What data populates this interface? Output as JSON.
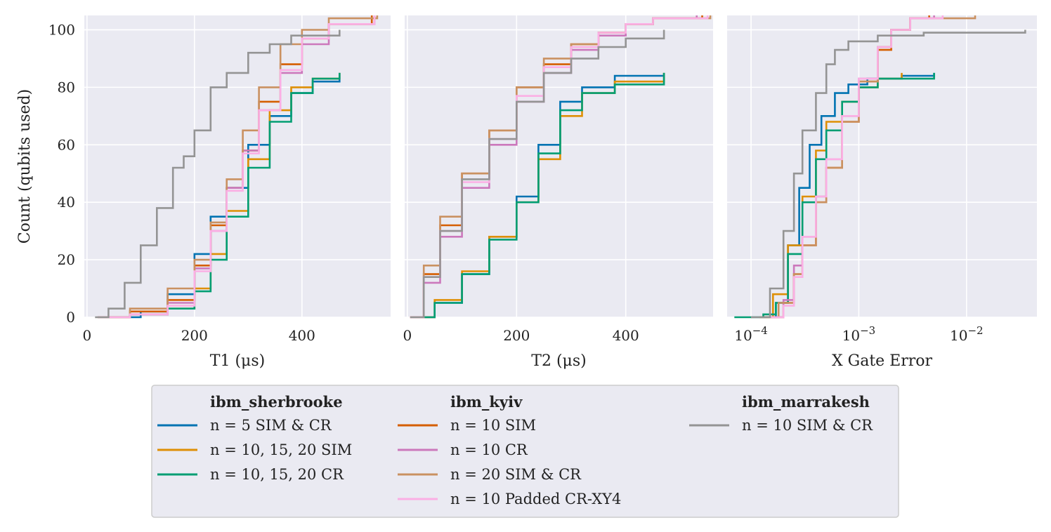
{
  "chart_data": [
    {
      "type": "line",
      "subtype": "step-ecdf",
      "xlabel": "T1 (μs)",
      "ylabel": "Count (qubits used)",
      "xlim": [
        -5,
        565
      ],
      "ylim": [
        0,
        105
      ],
      "xticks": [
        "0",
        "200",
        "400"
      ],
      "yticks": [
        "0",
        "20",
        "40",
        "60",
        "80",
        "100"
      ],
      "grid": true,
      "series": [
        {
          "name": "n = 5 SIM & CR",
          "group": "ibm_sherbrooke",
          "color": "#0173b2",
          "x": [
            25,
            100,
            150,
            200,
            230,
            260,
            300,
            340,
            380,
            420,
            470
          ],
          "y": [
            0,
            2,
            8,
            22,
            35,
            45,
            60,
            70,
            78,
            82,
            85
          ]
        },
        {
          "name": "n = 10, 15, 20 SIM",
          "group": "ibm_sherbrooke",
          "color": "#de8f05",
          "x": [
            20,
            80,
            150,
            200,
            230,
            260,
            300,
            340,
            380,
            420,
            470
          ],
          "y": [
            0,
            1,
            3,
            10,
            22,
            37,
            55,
            72,
            80,
            83,
            85
          ]
        },
        {
          "name": "n = 10, 15, 20 CR",
          "group": "ibm_sherbrooke",
          "color": "#029e73",
          "x": [
            20,
            80,
            150,
            200,
            230,
            260,
            300,
            340,
            380,
            420,
            470
          ],
          "y": [
            0,
            1,
            3,
            9,
            20,
            35,
            52,
            68,
            78,
            83,
            85
          ]
        },
        {
          "name": "n = 10 SIM",
          "group": "ibm_kyiv",
          "color": "#d55e00",
          "x": [
            20,
            80,
            150,
            200,
            230,
            260,
            290,
            320,
            360,
            400,
            450,
            530
          ],
          "y": [
            0,
            2,
            6,
            18,
            32,
            45,
            58,
            75,
            88,
            97,
            102,
            105
          ]
        },
        {
          "name": "n = 10 CR",
          "group": "ibm_kyiv",
          "color": "#cc78bc",
          "x": [
            20,
            80,
            150,
            200,
            230,
            260,
            290,
            320,
            360,
            400,
            450,
            535
          ],
          "y": [
            0,
            1,
            5,
            17,
            30,
            45,
            58,
            72,
            85,
            95,
            102,
            105
          ]
        },
        {
          "name": "n = 20 SIM & CR",
          "group": "ibm_kyiv",
          "color": "#ca9161",
          "x": [
            20,
            80,
            150,
            200,
            230,
            260,
            290,
            320,
            360,
            400,
            450,
            540
          ],
          "y": [
            0,
            3,
            10,
            20,
            33,
            48,
            65,
            80,
            95,
            100,
            104,
            105
          ]
        },
        {
          "name": "n = 10 Padded CR-XY4",
          "group": "ibm_kyiv",
          "color": "#fbafe4",
          "x": [
            20,
            80,
            150,
            200,
            230,
            260,
            290,
            320,
            360,
            400,
            450,
            535
          ],
          "y": [
            0,
            1,
            4,
            16,
            30,
            44,
            57,
            72,
            86,
            97,
            102,
            105
          ]
        },
        {
          "name": "n = 10 SIM & CR",
          "group": "ibm_marrakesh",
          "color": "#949494",
          "x": [
            15,
            40,
            70,
            100,
            130,
            160,
            180,
            200,
            230,
            260,
            300,
            340,
            380,
            470
          ],
          "y": [
            0,
            3,
            12,
            25,
            38,
            52,
            56,
            65,
            80,
            85,
            92,
            95,
            98,
            100
          ]
        }
      ]
    },
    {
      "type": "line",
      "subtype": "step-ecdf",
      "xlabel": "T2 (μs)",
      "xlim": [
        -5,
        560
      ],
      "ylim": [
        0,
        105
      ],
      "xticks": [
        "0",
        "200",
        "400"
      ],
      "grid": true,
      "series": [
        {
          "name": "n = 5 SIM & CR",
          "color": "#0173b2",
          "x": [
            10,
            50,
            100,
            150,
            200,
            240,
            280,
            320,
            380,
            470
          ],
          "y": [
            0,
            5,
            15,
            28,
            42,
            60,
            75,
            80,
            84,
            85
          ]
        },
        {
          "name": "n = 10, 15, 20 SIM",
          "color": "#de8f05",
          "x": [
            10,
            50,
            100,
            150,
            200,
            240,
            280,
            320,
            380,
            470
          ],
          "y": [
            0,
            6,
            16,
            28,
            40,
            55,
            70,
            78,
            82,
            85
          ]
        },
        {
          "name": "n = 10, 15, 20 CR",
          "color": "#029e73",
          "x": [
            10,
            50,
            100,
            150,
            200,
            240,
            280,
            320,
            380,
            470
          ],
          "y": [
            0,
            5,
            15,
            27,
            40,
            57,
            72,
            78,
            81,
            85
          ]
        },
        {
          "name": "n = 10 SIM",
          "color": "#d55e00",
          "x": [
            5,
            30,
            60,
            100,
            150,
            200,
            250,
            300,
            350,
            400,
            450,
            540
          ],
          "y": [
            0,
            15,
            32,
            50,
            65,
            80,
            88,
            95,
            99,
            102,
            104,
            105
          ]
        },
        {
          "name": "n = 10 CR",
          "color": "#cc78bc",
          "x": [
            5,
            30,
            60,
            100,
            150,
            200,
            250,
            300,
            350,
            400,
            450,
            530
          ],
          "y": [
            0,
            12,
            28,
            45,
            60,
            75,
            85,
            93,
            98,
            102,
            104,
            105
          ]
        },
        {
          "name": "n = 20 SIM & CR",
          "color": "#ca9161",
          "x": [
            5,
            30,
            60,
            100,
            150,
            200,
            250,
            300,
            350,
            400,
            450,
            555
          ],
          "y": [
            0,
            18,
            35,
            50,
            65,
            80,
            90,
            95,
            99,
            102,
            104,
            105
          ]
        },
        {
          "name": "n = 10 Padded CR-XY4",
          "color": "#fbafe4",
          "x": [
            5,
            30,
            60,
            100,
            150,
            200,
            250,
            300,
            350,
            400,
            450,
            550
          ],
          "y": [
            0,
            14,
            30,
            47,
            62,
            77,
            87,
            94,
            99,
            102,
            104,
            105
          ]
        },
        {
          "name": "n = 10 SIM & CR",
          "color": "#949494",
          "x": [
            5,
            30,
            60,
            100,
            150,
            200,
            250,
            300,
            350,
            400,
            470
          ],
          "y": [
            0,
            14,
            30,
            48,
            62,
            75,
            85,
            90,
            94,
            97,
            100
          ]
        }
      ]
    },
    {
      "type": "line",
      "subtype": "step-ecdf",
      "xlabel": "X Gate Error",
      "xscale": "log",
      "xlim": [
        6e-05,
        0.045
      ],
      "ylim": [
        0,
        105
      ],
      "xticks": [
        "10^-4",
        "10^-3",
        "10^-2"
      ],
      "grid": true,
      "series": [
        {
          "name": "n = 5 SIM & CR",
          "color": "#0173b2",
          "x": [
            0.00013,
            0.00017,
            0.00022,
            0.00028,
            0.00035,
            0.00045,
            0.0006,
            0.0008,
            0.0012,
            0.0025,
            0.005
          ],
          "y": [
            0,
            5,
            25,
            45,
            60,
            70,
            78,
            81,
            83,
            84,
            85
          ]
        },
        {
          "name": "n = 10, 15, 20 SIM",
          "color": "#de8f05",
          "x": [
            0.00012,
            0.00016,
            0.00022,
            0.0003,
            0.0004,
            0.0005,
            0.0007,
            0.001,
            0.0015,
            0.0025
          ],
          "y": [
            0,
            8,
            25,
            42,
            58,
            68,
            75,
            80,
            83,
            85
          ]
        },
        {
          "name": "n = 10, 15, 20 CR",
          "color": "#029e73",
          "x": [
            7e-05,
            0.00013,
            0.00017,
            0.00022,
            0.0003,
            0.0004,
            0.0005,
            0.0007,
            0.001,
            0.0015,
            0.005
          ],
          "y": [
            0,
            1,
            5,
            22,
            40,
            55,
            65,
            75,
            80,
            83,
            85
          ]
        },
        {
          "name": "n = 10 SIM",
          "color": "#d55e00",
          "x": [
            0.00015,
            0.0002,
            0.00025,
            0.0003,
            0.0004,
            0.0005,
            0.0007,
            0.001,
            0.0015,
            0.002,
            0.003,
            0.0045
          ],
          "y": [
            0,
            5,
            15,
            25,
            40,
            52,
            68,
            82,
            93,
            100,
            104,
            105
          ]
        },
        {
          "name": "n = 10 CR",
          "color": "#cc78bc",
          "x": [
            0.00015,
            0.0002,
            0.00025,
            0.0003,
            0.0004,
            0.0005,
            0.0007,
            0.001,
            0.0015,
            0.002,
            0.003,
            0.005
          ],
          "y": [
            0,
            6,
            18,
            28,
            42,
            55,
            70,
            83,
            94,
            100,
            104,
            105
          ]
        },
        {
          "name": "n = 20 SIM & CR",
          "color": "#ca9161",
          "x": [
            0.00012,
            0.00018,
            0.00025,
            0.0003,
            0.0004,
            0.0005,
            0.0007,
            0.001,
            0.0015,
            0.002,
            0.003,
            0.012
          ],
          "y": [
            0,
            5,
            15,
            25,
            40,
            52,
            68,
            82,
            94,
            100,
            104,
            105
          ]
        },
        {
          "name": "n = 10 Padded CR-XY4",
          "color": "#fbafe4",
          "x": [
            0.00015,
            0.0002,
            0.00025,
            0.0003,
            0.0004,
            0.0005,
            0.0007,
            0.001,
            0.0015,
            0.002,
            0.003,
            0.006
          ],
          "y": [
            0,
            4,
            14,
            28,
            42,
            55,
            70,
            83,
            94,
            100,
            104,
            105
          ]
        },
        {
          "name": "n = 10 SIM & CR",
          "color": "#949494",
          "x": [
            0.0001,
            0.00015,
            0.0002,
            0.00025,
            0.0003,
            0.0004,
            0.0005,
            0.0006,
            0.0008,
            0.0015,
            0.004,
            0.035
          ],
          "y": [
            0,
            10,
            30,
            50,
            65,
            78,
            88,
            93,
            96,
            98,
            99,
            100
          ]
        }
      ]
    }
  ],
  "legend": {
    "columns": [
      {
        "title": "ibm_sherbrooke",
        "entries": [
          {
            "label": "n = 5 SIM & CR",
            "color": "#0173b2"
          },
          {
            "label": "n = 10, 15, 20 SIM",
            "color": "#de8f05"
          },
          {
            "label": "n = 10, 15, 20 CR",
            "color": "#029e73"
          }
        ]
      },
      {
        "title": "ibm_kyiv",
        "entries": [
          {
            "label": "n = 10 SIM",
            "color": "#d55e00"
          },
          {
            "label": "n = 10 CR",
            "color": "#cc78bc"
          },
          {
            "label": "n = 20 SIM & CR",
            "color": "#ca9161"
          },
          {
            "label": "n = 10 Padded CR-XY4",
            "color": "#fbafe4"
          }
        ]
      },
      {
        "title": "ibm_marrakesh",
        "entries": [
          {
            "label": "n = 10 SIM & CR",
            "color": "#949494"
          }
        ]
      }
    ]
  }
}
